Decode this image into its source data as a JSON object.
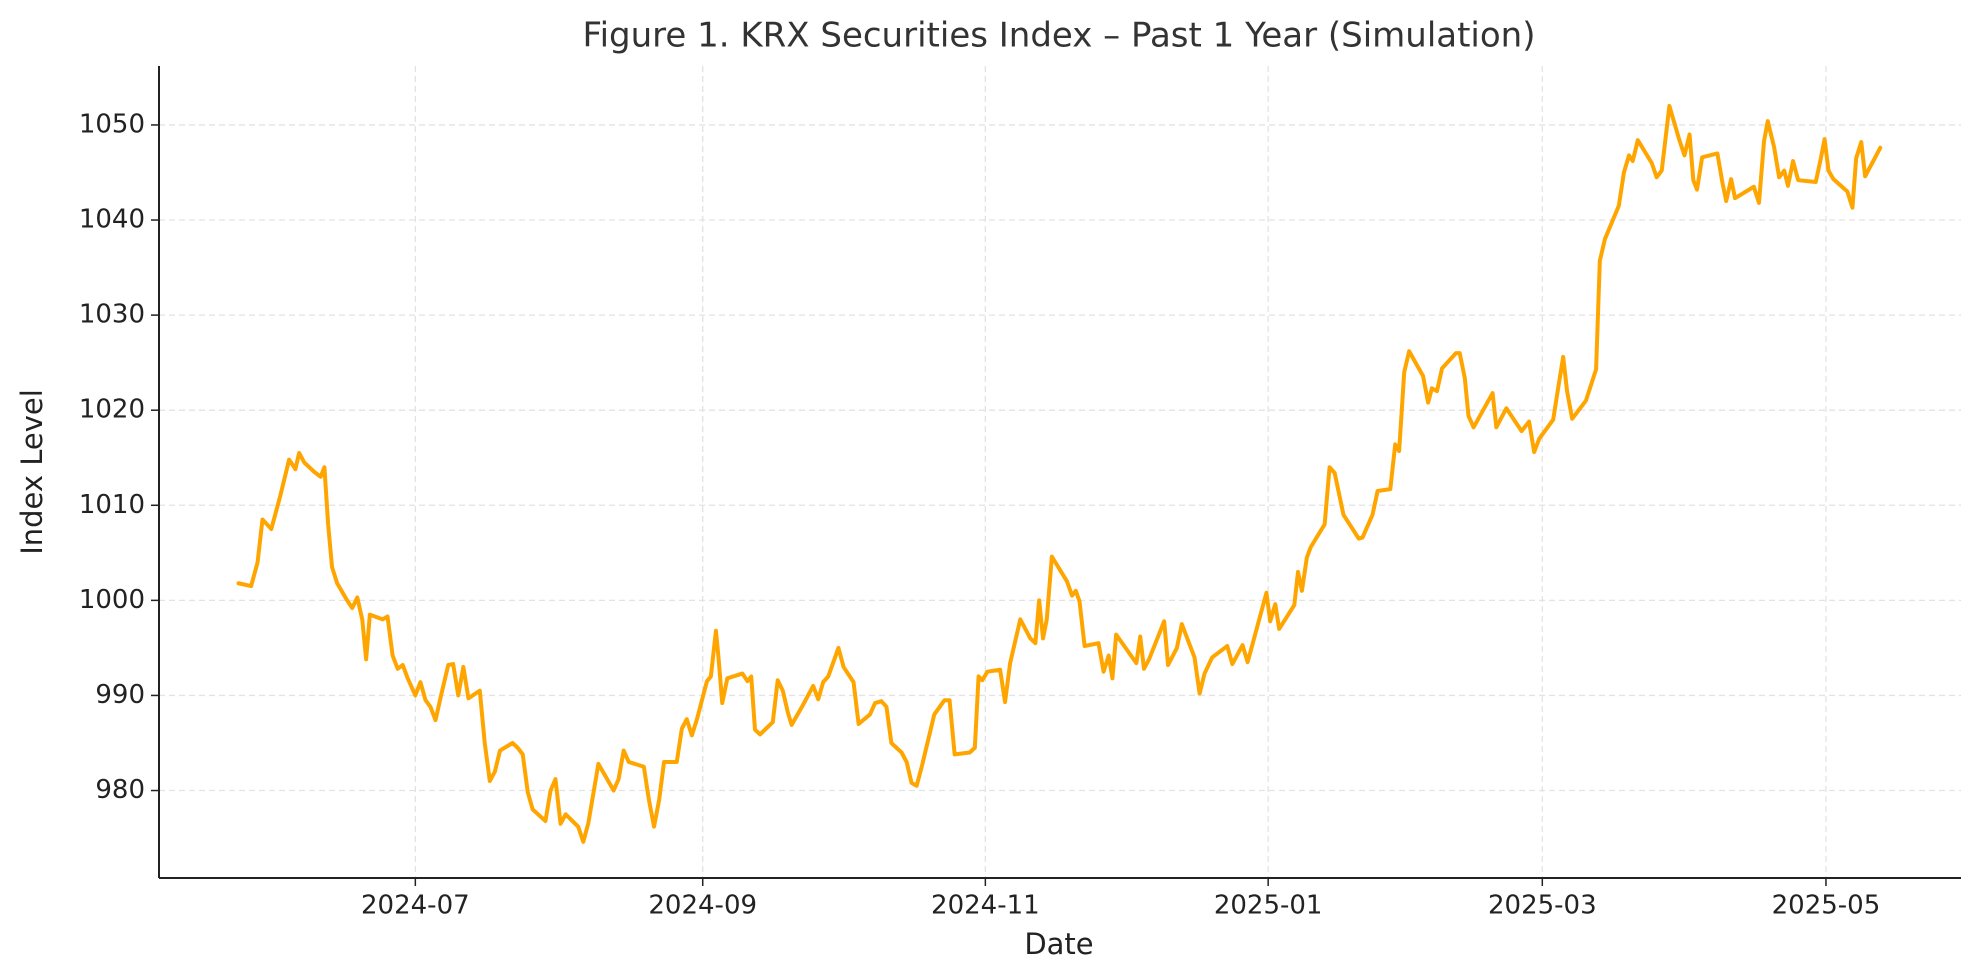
{
  "chart_data": {
    "type": "line",
    "title": "Figure 1. KRX Securities Index – Past 1 Year (Simulation)",
    "x_label": "Date",
    "y_label": "Index Level",
    "grid": true,
    "xlim": [
      2024.3462,
      2025.4084
    ],
    "xticks": [
      {
        "value": 2024.4973,
        "label": "2024-07"
      },
      {
        "value": 2024.6667,
        "label": "2024-09"
      },
      {
        "value": 2024.8333,
        "label": "2024-11"
      },
      {
        "value": 2025.0,
        "label": "2025-01"
      },
      {
        "value": 2025.1616,
        "label": "2025-03"
      },
      {
        "value": 2025.3288,
        "label": "2025-05"
      }
    ],
    "ylim": [
      970.8,
      1056.2
    ],
    "yticks": [
      980,
      990,
      1000,
      1010,
      1020,
      1030,
      1040,
      1050
    ],
    "x": [
      2024.3931,
      2024.4005,
      2024.4043,
      2024.4072,
      2024.4124,
      2024.4177,
      2024.4229,
      2024.4266,
      2024.4288,
      2024.4318,
      2024.4378,
      2024.4415,
      2024.4437,
      2024.4459,
      2024.4482,
      2024.4512,
      2024.4571,
      2024.4601,
      2024.4631,
      2024.466,
      2024.4683,
      2024.4705,
      2024.478,
      2024.4809,
      2024.4839,
      2024.4869,
      2024.4899,
      2024.4928,
      2024.4973,
      2024.5003,
      2024.5033,
      2024.5062,
      2024.5092,
      2024.5122,
      2024.5167,
      2024.5196,
      2024.5226,
      2024.5256,
      2024.5286,
      2024.5353,
      2024.5382,
      2024.5412,
      2024.5442,
      2024.5472,
      2024.5546,
      2024.5576,
      2024.5606,
      2024.5636,
      2024.5665,
      2024.574,
      2024.577,
      2024.5799,
      2024.5829,
      2024.5859,
      2024.5933,
      2024.5963,
      2024.5993,
      2024.6052,
      2024.6142,
      2024.6171,
      2024.6201,
      2024.6231,
      2024.632,
      2024.635,
      2024.638,
      2024.641,
      2024.6439,
      2024.6514,
      2024.6544,
      2024.6573,
      2024.6603,
      2024.6633,
      2024.6692,
      2024.6715,
      2024.6745,
      2024.676,
      2024.6782,
      2024.6812,
      2024.6901,
      2024.6931,
      2024.6953,
      2024.6975,
      2024.7005,
      2024.708,
      2024.7109,
      2024.7139,
      2024.7169,
      2024.7191,
      2024.7258,
      2024.7318,
      2024.7348,
      2024.7377,
      2024.7407,
      2024.7467,
      2024.7497,
      2024.7556,
      2024.7586,
      2024.7653,
      2024.7683,
      2024.772,
      2024.775,
      2024.7779,
      2024.7839,
      2024.7869,
      2024.7898,
      2024.7928,
      2024.7958,
      2024.8032,
      2024.8092,
      2024.8122,
      2024.8152,
      2024.8241,
      2024.8271,
      2024.8293,
      2024.8315,
      2024.8345,
      2024.842,
      2024.8449,
      2024.8479,
      2024.8539,
      2024.8598,
      2024.8628,
      2024.865,
      2024.8673,
      2024.8695,
      2024.8725,
      2024.8814,
      2024.8844,
      2024.8866,
      2024.8888,
      2024.8918,
      2024.9,
      2024.903,
      2024.906,
      2024.9082,
      2024.9104,
      2024.9223,
      2024.9246,
      2024.9268,
      2024.9298,
      2024.9387,
      2024.941,
      2024.9462,
      2024.9491,
      2024.9566,
      2024.9596,
      2024.9625,
      2024.967,
      2024.9759,
      2024.9789,
      2024.9849,
      2024.9879,
      2024.999,
      2025.0012,
      2025.0042,
      2025.0065,
      2025.0154,
      2025.0176,
      2025.0199,
      2025.0228,
      2025.0251,
      2025.0333,
      2025.0362,
      2025.0392,
      2025.0444,
      2025.0534,
      2025.0556,
      2025.0615,
      2025.0645,
      2025.072,
      2025.0749,
      2025.0772,
      2025.0802,
      2025.0831,
      2025.0913,
      2025.0943,
      2025.0965,
      2025.0995,
      2025.1025,
      2025.1107,
      2025.1129,
      2025.1159,
      2025.1181,
      2025.1211,
      2025.1323,
      2025.1345,
      2025.1404,
      2025.1494,
      2025.1538,
      2025.1568,
      2025.1598,
      2025.168,
      2025.171,
      2025.1739,
      2025.1762,
      2025.1792,
      2025.1873,
      2025.1933,
      2025.1955,
      2025.1985,
      2025.2067,
      2025.2097,
      2025.2127,
      2025.2149,
      2025.2179,
      2025.2261,
      2025.229,
      2025.232,
      2025.2365,
      2025.2424,
      2025.2454,
      2025.2484,
      2025.2506,
      2025.2528,
      2025.2558,
      2025.2648,
      2025.2677,
      2025.27,
      2025.2729,
      2025.2752,
      2025.2863,
      2025.2893,
      2025.2923,
      2025.2945,
      2025.2983,
      2025.3012,
      2025.3042,
      2025.3064,
      2025.3094,
      2025.3124,
      2025.3228,
      2025.3258,
      2025.328,
      2025.3303,
      2025.3332,
      2025.3414,
      2025.3444,
      2025.3466,
      2025.3496,
      2025.3519,
      2025.3608
    ],
    "series": [
      {
        "name": "KRX Securities Index",
        "color": "#ffa500",
        "values": [
          1001.8,
          1001.5,
          1004,
          1008.5,
          1007.5,
          1011,
          1014.8,
          1013.8,
          1015.5,
          1014.5,
          1013.5,
          1013,
          1014,
          1008,
          1003.5,
          1001.8,
          1000,
          999.2,
          1000.3,
          998,
          993.8,
          998.5,
          998,
          998.3,
          994.2,
          992.8,
          993.2,
          991.8,
          990,
          991.4,
          989.5,
          988.8,
          987.4,
          989.8,
          993.2,
          993.3,
          990,
          993,
          989.7,
          990.5,
          985,
          981,
          982,
          984.2,
          985,
          984.5,
          983.8,
          979.8,
          978,
          976.8,
          980,
          981.2,
          976.5,
          977.5,
          976.2,
          974.6,
          976.6,
          982.8,
          980,
          981.2,
          984.2,
          983,
          982.5,
          979,
          976.2,
          979,
          983,
          983,
          986.5,
          987.5,
          985.8,
          987.5,
          991.5,
          992,
          996.8,
          994,
          989.2,
          991.8,
          992.3,
          991.5,
          992,
          986.4,
          985.9,
          987.2,
          991.6,
          990.5,
          988.2,
          986.9,
          989,
          991,
          989.6,
          991.4,
          992,
          995,
          993,
          991.4,
          987,
          988,
          989.2,
          989.4,
          988.8,
          985,
          984,
          983,
          980.8,
          980.5,
          982.5,
          988,
          989.5,
          989.5,
          983.8,
          984,
          984.5,
          992,
          991.6,
          992.5,
          992.7,
          989.3,
          993.4,
          998,
          996,
          995.5,
          1000,
          996,
          998,
          1004.6,
          1002,
          1000.5,
          1001,
          999.9,
          995.2,
          995.5,
          992.5,
          994.2,
          991.8,
          996.4,
          993.4,
          996.2,
          992.8,
          993.8,
          997.8,
          993.2,
          995,
          997.5,
          994,
          990.2,
          992.3,
          994,
          995.2,
          993.3,
          995.3,
          993.5,
          1000.8,
          997.8,
          999.6,
          997,
          999.5,
          1003,
          1001,
          1004.5,
          1005.6,
          1008,
          1014,
          1013.4,
          1009,
          1006.5,
          1006.6,
          1009,
          1011.5,
          1011.7,
          1016.4,
          1015.7,
          1024,
          1026.2,
          1023.6,
          1020.8,
          1022.3,
          1022,
          1024.4,
          1026,
          1026,
          1023.4,
          1019.4,
          1018.2,
          1021.8,
          1018.2,
          1020.2,
          1017.8,
          1018.8,
          1015.6,
          1017,
          1019,
          1022.4,
          1025.6,
          1022,
          1019.1,
          1021,
          1024.3,
          1035.7,
          1038,
          1041.5,
          1045,
          1046.8,
          1046.2,
          1048.4,
          1046,
          1044.5,
          1045.2,
          1052,
          1048.4,
          1046.8,
          1049,
          1044.2,
          1043.2,
          1046.6,
          1047,
          1044,
          1042,
          1044.3,
          1042.3,
          1043.5,
          1041.8,
          1048.3,
          1050.4,
          1047.6,
          1044.5,
          1045.2,
          1043.6,
          1046.2,
          1044.2,
          1044,
          1046.5,
          1048.5,
          1045.2,
          1044.3,
          1043,
          1041.3,
          1046.5,
          1048.2,
          1044.6,
          1047.6
        ]
      }
    ]
  }
}
